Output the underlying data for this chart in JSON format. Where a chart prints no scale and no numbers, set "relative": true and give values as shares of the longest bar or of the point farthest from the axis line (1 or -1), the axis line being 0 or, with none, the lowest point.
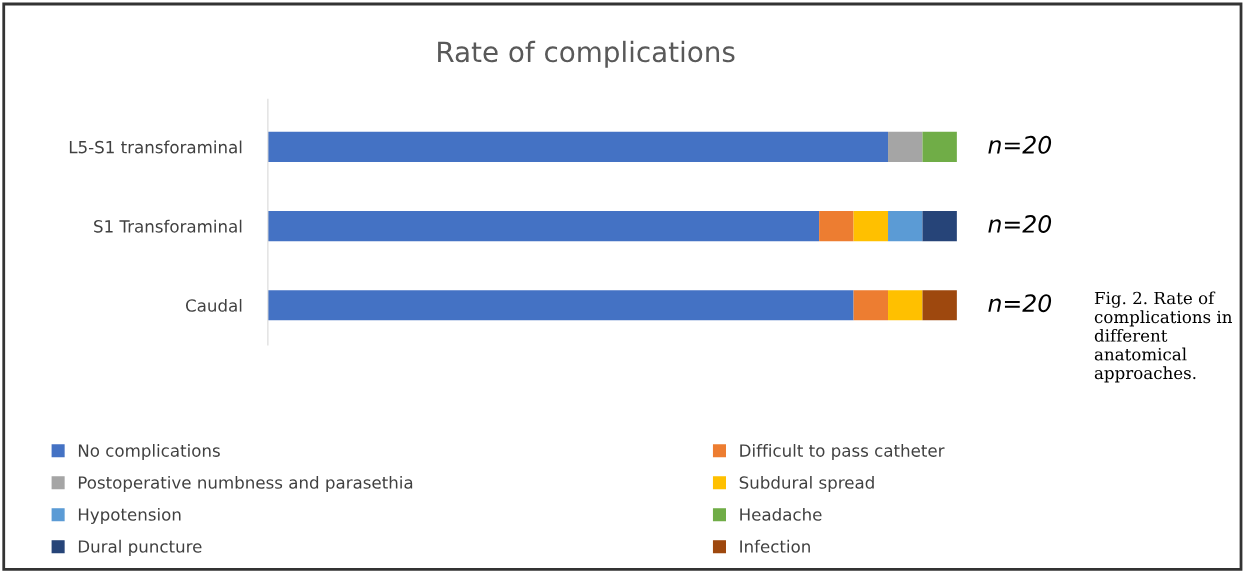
{
  "chart_data": {
    "type": "bar",
    "orientation": "horizontal",
    "stacked": true,
    "relative": true,
    "title": "Rate of complications",
    "categories": [
      "L5-S1 transforaminal",
      "S1 Transforaminal",
      "Caudal"
    ],
    "series": [
      {
        "name": "No complications",
        "color": "#4472c4",
        "values": [
          0.9,
          0.8,
          0.85
        ]
      },
      {
        "name": "Difficult to pass catheter",
        "color": "#ed7d31",
        "values": [
          null,
          0.05,
          0.05
        ]
      },
      {
        "name": "Postoperative numbness and parasethia",
        "color": "#a5a5a5",
        "values": [
          0.05,
          null,
          null
        ]
      },
      {
        "name": "Subdural spread",
        "color": "#ffc000",
        "values": [
          null,
          0.05,
          0.05
        ]
      },
      {
        "name": "Hypotension",
        "color": "#5b9bd5",
        "values": [
          null,
          0.05,
          null
        ]
      },
      {
        "name": "Headache",
        "color": "#70ad47",
        "values": [
          0.05,
          null,
          null
        ]
      },
      {
        "name": "Dural puncture",
        "color": "#264478",
        "values": [
          null,
          0.05,
          null
        ]
      },
      {
        "name": "Infection",
        "color": "#9e480e",
        "values": [
          null,
          null,
          0.05
        ]
      }
    ],
    "annotations": [
      "n=20",
      "n=20",
      "n=20",
      "Fig. 2. Rate of complications in different anatomical approaches."
    ],
    "legend": "bottom",
    "grid": false,
    "tick_labels": "y"
  }
}
